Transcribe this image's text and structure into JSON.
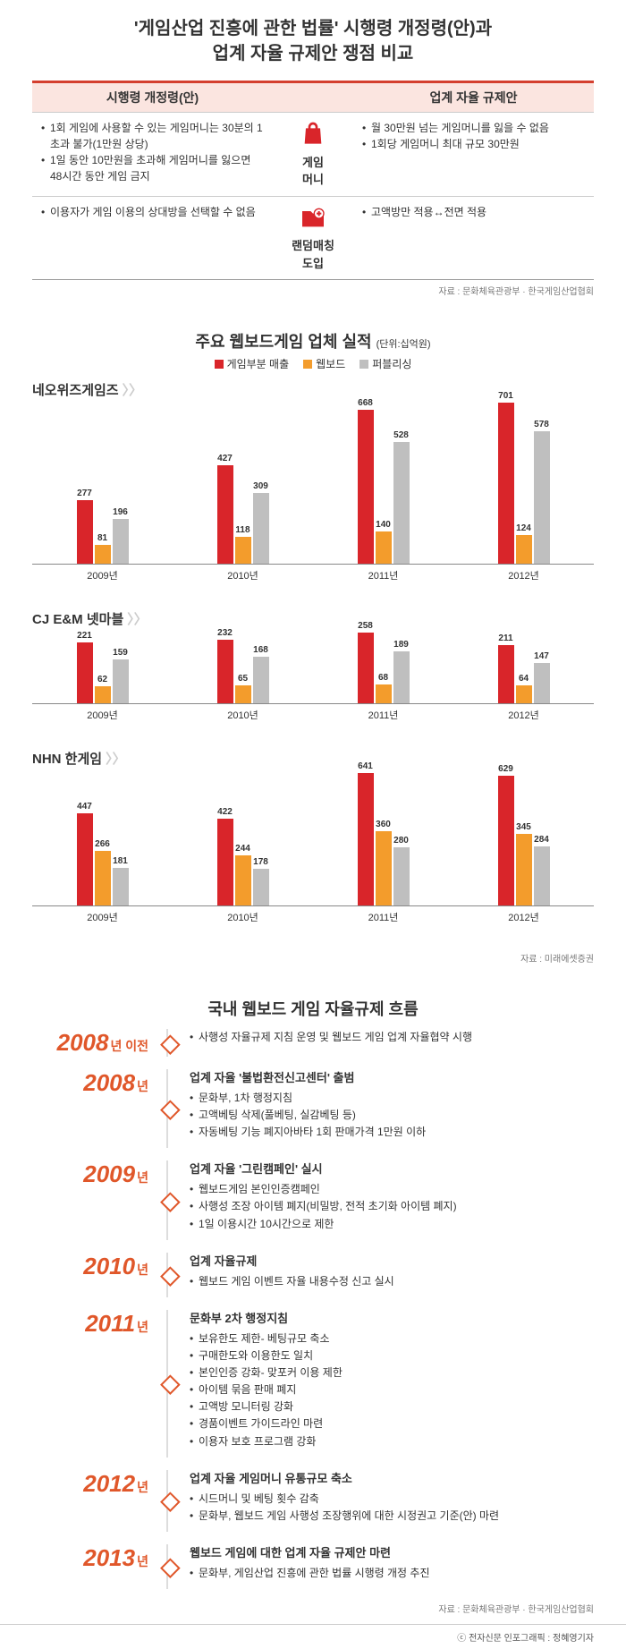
{
  "title_l1": "'게임산업 진흥에 관한 법률' 시행령 개정령(안)과",
  "title_l2": "업계 자율 규제안 쟁점 비교",
  "cmp": {
    "head_left": "시행령 개정령(안)",
    "head_right": "업계 자율 규제안",
    "rows": [
      {
        "left": [
          "1회 게임에 사용할 수 있는 게임머니는 30분의 1 초과 불가(1만원 상당)",
          "1일 동안 10만원을 초과해 게임머니를 잃으면 48시간 동안 게임 금지"
        ],
        "mid_label": "게임\n머니",
        "right": [
          "월 30만원 넘는 게임머니를 잃을 수 없음",
          "1회당 게임머니 최대 규모 30만원"
        ]
      },
      {
        "left": [
          "이용자가 게임 이용의 상대방을 선택할 수 없음"
        ],
        "mid_label": "랜덤매칭\n도입",
        "right": [
          "고액방만 적용↔전면 적용"
        ]
      }
    ],
    "source": "자료 : 문화체육관광부 · 한국게임산업협회"
  },
  "chart": {
    "title": "주요 웹보드게임 업체 실적",
    "unit": "(단위:십억원)",
    "colors": {
      "rev": "#d9252a",
      "web": "#f39c2c",
      "pub": "#bfbfbf"
    },
    "legend": {
      "rev": "게임부분 매출",
      "web": "웹보드",
      "pub": "퍼블리싱"
    },
    "companies": [
      {
        "name": "네오위즈게임즈",
        "maxh": 180,
        "max": 701,
        "years": [
          {
            "y": "2009년",
            "v": [
              277,
              81,
              196
            ]
          },
          {
            "y": "2010년",
            "v": [
              427,
              118,
              309
            ]
          },
          {
            "y": "2011년",
            "v": [
              668,
              140,
              528
            ]
          },
          {
            "y": "2012년",
            "v": [
              701,
              124,
              578
            ]
          }
        ]
      },
      {
        "name": "CJ E&M 넷마블",
        "maxh": 80,
        "max": 260,
        "years": [
          {
            "y": "2009년",
            "v": [
              221,
              62,
              159
            ]
          },
          {
            "y": "2010년",
            "v": [
              232,
              65,
              168
            ]
          },
          {
            "y": "2011년",
            "v": [
              258,
              68,
              189
            ]
          },
          {
            "y": "2012년",
            "v": [
              211,
              64,
              147
            ]
          }
        ]
      },
      {
        "name": "NHN 한게임",
        "maxh": 150,
        "max": 650,
        "years": [
          {
            "y": "2009년",
            "v": [
              447,
              266,
              181
            ]
          },
          {
            "y": "2010년",
            "v": [
              422,
              244,
              178
            ]
          },
          {
            "y": "2011년",
            "v": [
              641,
              360,
              280
            ]
          },
          {
            "y": "2012년",
            "v": [
              629,
              345,
              284
            ]
          }
        ]
      }
    ],
    "source": "자료 : 미래에셋증권"
  },
  "timeline": {
    "title": "국내 웹보드 게임 자율규제 흐름",
    "suffix_year": "년",
    "rows": [
      {
        "year": "2008",
        "suffix": "년 이전",
        "items": [
          "사행성 자율규제 지침 운영 및 웹보드 게임 업계 자율협약 시행"
        ]
      },
      {
        "year": "2008",
        "head": "업계 자율 '불법환전신고센터' 출범",
        "items": [
          "문화부, 1차 행정지침",
          "고액베팅 삭제(풀베팅, 실감베팅 등)",
          "자동베팅 기능 폐지아바타 1회 판매가격 1만원 이하"
        ]
      },
      {
        "year": "2009",
        "head": "업계 자율 '그린캠페인' 실시",
        "items": [
          "웹보드게임 본인인증캠페인",
          "사행성 조장 아이템 폐지(비밀방, 전적 초기화 아이템 폐지)",
          "1일 이용시간 10시간으로 제한"
        ]
      },
      {
        "year": "2010",
        "head": "업계 자율규제",
        "items": [
          "웹보드 게임 이벤트 자율 내용수정 신고 실시"
        ]
      },
      {
        "year": "2011",
        "head": "문화부 2차 행정지침",
        "items": [
          "보유한도 제한- 베팅규모 축소",
          "구매한도와 이용한도 일치",
          "본인인증 강화- 맞포커 이용 제한",
          "아이템 묶음 판매 폐지",
          "고액방 모니터링 강화",
          "경품이벤트 가이드라인 마련",
          "이용자 보호 프로그램 강화"
        ]
      },
      {
        "year": "2012",
        "head": "업계 자율 게임머니 유통규모 축소",
        "items": [
          "시드머니 및 베팅 횟수 감축",
          "문화부, 웹보드 게임 사행성 조장행위에 대한 시정권고 기준(안) 마련"
        ]
      },
      {
        "year": "2013",
        "head": "웹보드 게임에 대한 업계 자율 규제안 마련",
        "items": [
          "문화부, 게임산업 진흥에 관한 법률 시행령 개정 추진"
        ]
      }
    ],
    "source": "자료 : 문화체육관광부 · 한국게임산업협회"
  },
  "footer": "ⓒ 전자신문 인포그래픽 : 정혜영기자"
}
